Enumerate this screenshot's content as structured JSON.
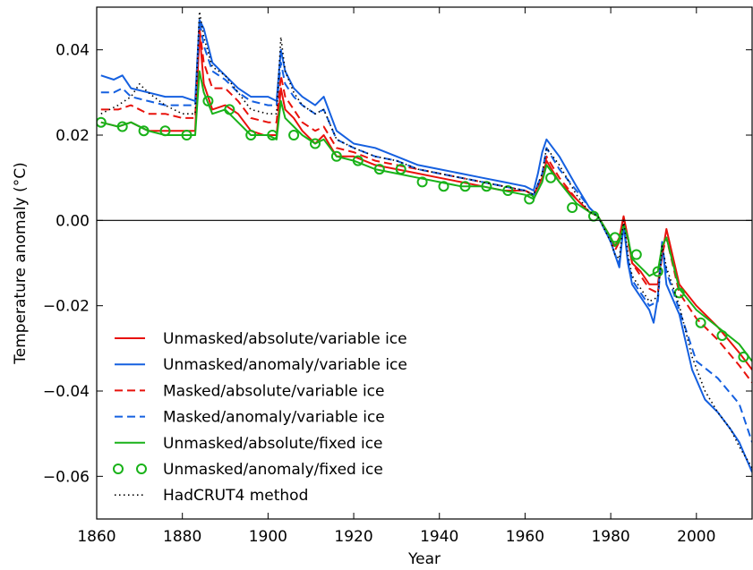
{
  "chart_data": {
    "type": "line",
    "title": "",
    "xlabel": "Year",
    "ylabel": "Temperature anomaly (°C)",
    "xlim": [
      1860,
      2013
    ],
    "ylim": [
      -0.07,
      0.05
    ],
    "xticks": [
      1860,
      1880,
      1900,
      1920,
      1940,
      1960,
      1980,
      2000
    ],
    "xtick_labels": [
      "1860",
      "1880",
      "1900",
      "1920",
      "1940",
      "1960",
      "1980",
      "2000"
    ],
    "yticks": [
      0.04,
      0.02,
      0.0,
      -0.02,
      -0.04,
      -0.06
    ],
    "ytick_labels": [
      "0.04",
      "0.02",
      "0.00",
      "−0.02",
      "−0.04",
      "−0.06"
    ],
    "zero_line": true,
    "grid": false,
    "legend_position": "lower-left",
    "colors": {
      "red": "#e8120c",
      "blue": "#1560e0",
      "green": "#19b219",
      "black": "#000000"
    },
    "series": [
      {
        "name": "Unmasked/absolute/variable ice",
        "color": "#e8120c",
        "style": "solid",
        "x": [
          1861,
          1865,
          1868,
          1872,
          1876,
          1880,
          1883,
          1884,
          1885,
          1887,
          1890,
          1893,
          1896,
          1899,
          1902,
          1903,
          1904,
          1906,
          1908,
          1911,
          1913,
          1916,
          1920,
          1925,
          1930,
          1935,
          1940,
          1945,
          1950,
          1955,
          1960,
          1962,
          1964,
          1965,
          1968,
          1972,
          1975,
          1977,
          1980,
          1981,
          1982,
          1983,
          1984,
          1985,
          1987,
          1989,
          1991,
          1992,
          1993,
          1996,
          2000,
          2005,
          2010,
          2013
        ],
        "y": [
          0.023,
          0.022,
          0.023,
          0.021,
          0.021,
          0.021,
          0.021,
          0.044,
          0.032,
          0.026,
          0.027,
          0.025,
          0.021,
          0.02,
          0.02,
          0.031,
          0.026,
          0.024,
          0.021,
          0.018,
          0.02,
          0.015,
          0.015,
          0.013,
          0.012,
          0.011,
          0.01,
          0.009,
          0.008,
          0.007,
          0.007,
          0.006,
          0.01,
          0.014,
          0.009,
          0.005,
          0.002,
          0.001,
          -0.004,
          -0.006,
          -0.004,
          0.001,
          -0.004,
          -0.01,
          -0.012,
          -0.015,
          -0.015,
          -0.008,
          -0.002,
          -0.015,
          -0.02,
          -0.025,
          -0.031,
          -0.035
        ]
      },
      {
        "name": "Unmasked/anomaly/variable ice",
        "color": "#1560e0",
        "style": "solid",
        "x": [
          1861,
          1864,
          1866,
          1868,
          1872,
          1876,
          1880,
          1883,
          1884,
          1885,
          1887,
          1890,
          1893,
          1896,
          1900,
          1902,
          1903,
          1904,
          1906,
          1908,
          1911,
          1913,
          1916,
          1920,
          1925,
          1930,
          1935,
          1940,
          1945,
          1950,
          1955,
          1960,
          1962,
          1963,
          1964,
          1965,
          1968,
          1972,
          1975,
          1977,
          1980,
          1981,
          1982,
          1983,
          1984,
          1985,
          1987,
          1989,
          1990,
          1991,
          1992,
          1993,
          1996,
          1999,
          2002,
          2005,
          2008,
          2010,
          2013
        ],
        "y": [
          0.034,
          0.033,
          0.034,
          0.031,
          0.03,
          0.029,
          0.029,
          0.028,
          0.047,
          0.045,
          0.037,
          0.034,
          0.031,
          0.029,
          0.029,
          0.028,
          0.04,
          0.035,
          0.031,
          0.029,
          0.027,
          0.029,
          0.021,
          0.018,
          0.017,
          0.015,
          0.013,
          0.012,
          0.011,
          0.01,
          0.009,
          0.008,
          0.007,
          0.011,
          0.016,
          0.019,
          0.015,
          0.008,
          0.003,
          0.001,
          -0.005,
          -0.008,
          -0.011,
          -0.001,
          -0.01,
          -0.015,
          -0.018,
          -0.021,
          -0.024,
          -0.018,
          -0.005,
          -0.015,
          -0.022,
          -0.035,
          -0.042,
          -0.045,
          -0.049,
          -0.052,
          -0.059
        ]
      },
      {
        "name": "Masked/absolute/variable ice",
        "color": "#e8120c",
        "style": "dashed",
        "x": [
          1861,
          1865,
          1868,
          1872,
          1876,
          1880,
          1883,
          1884,
          1885,
          1887,
          1890,
          1893,
          1896,
          1900,
          1902,
          1903,
          1904,
          1906,
          1908,
          1911,
          1913,
          1916,
          1920,
          1925,
          1930,
          1935,
          1940,
          1945,
          1950,
          1955,
          1960,
          1962,
          1964,
          1965,
          1968,
          1972,
          1975,
          1977,
          1980,
          1981,
          1982,
          1983,
          1984,
          1985,
          1987,
          1989,
          1991,
          1992,
          1993,
          1996,
          2000,
          2005,
          2010,
          2013
        ],
        "y": [
          0.026,
          0.026,
          0.027,
          0.025,
          0.025,
          0.024,
          0.024,
          0.045,
          0.037,
          0.031,
          0.031,
          0.028,
          0.024,
          0.023,
          0.023,
          0.034,
          0.029,
          0.026,
          0.023,
          0.021,
          0.022,
          0.017,
          0.016,
          0.014,
          0.013,
          0.012,
          0.011,
          0.01,
          0.009,
          0.008,
          0.007,
          0.006,
          0.01,
          0.015,
          0.01,
          0.005,
          0.002,
          0.001,
          -0.004,
          -0.007,
          -0.005,
          0.001,
          -0.005,
          -0.01,
          -0.013,
          -0.016,
          -0.017,
          -0.008,
          -0.004,
          -0.017,
          -0.023,
          -0.028,
          -0.034,
          -0.038
        ]
      },
      {
        "name": "Masked/anomaly/variable ice",
        "color": "#1560e0",
        "style": "dashed",
        "x": [
          1861,
          1864,
          1866,
          1868,
          1872,
          1876,
          1880,
          1883,
          1884,
          1885,
          1887,
          1890,
          1893,
          1896,
          1900,
          1902,
          1903,
          1904,
          1906,
          1908,
          1911,
          1913,
          1916,
          1920,
          1925,
          1930,
          1935,
          1940,
          1945,
          1950,
          1955,
          1960,
          1962,
          1964,
          1965,
          1968,
          1972,
          1975,
          1977,
          1980,
          1981,
          1982,
          1983,
          1984,
          1985,
          1987,
          1989,
          1991,
          1992,
          1993,
          1996,
          2000,
          2005,
          2010,
          2013
        ],
        "y": [
          0.03,
          0.03,
          0.031,
          0.029,
          0.028,
          0.027,
          0.027,
          0.027,
          0.047,
          0.041,
          0.035,
          0.033,
          0.03,
          0.028,
          0.027,
          0.027,
          0.037,
          0.032,
          0.029,
          0.027,
          0.025,
          0.026,
          0.019,
          0.017,
          0.015,
          0.014,
          0.012,
          0.011,
          0.01,
          0.009,
          0.008,
          0.007,
          0.006,
          0.011,
          0.017,
          0.012,
          0.007,
          0.003,
          0.001,
          -0.005,
          -0.008,
          -0.01,
          -0.001,
          -0.009,
          -0.014,
          -0.017,
          -0.02,
          -0.019,
          -0.006,
          -0.012,
          -0.021,
          -0.033,
          -0.037,
          -0.043,
          -0.052
        ]
      },
      {
        "name": "Unmasked/absolute/fixed ice",
        "color": "#19b219",
        "style": "solid",
        "x": [
          1861,
          1865,
          1868,
          1872,
          1876,
          1880,
          1883,
          1884,
          1885,
          1887,
          1890,
          1893,
          1896,
          1900,
          1902,
          1903,
          1904,
          1906,
          1908,
          1911,
          1913,
          1916,
          1920,
          1925,
          1930,
          1935,
          1940,
          1945,
          1950,
          1955,
          1960,
          1962,
          1964,
          1965,
          1968,
          1972,
          1975,
          1977,
          1980,
          1981,
          1982,
          1983,
          1984,
          1985,
          1987,
          1989,
          1991,
          1992,
          1993,
          1996,
          2000,
          2005,
          2010,
          2013
        ],
        "y": [
          0.023,
          0.022,
          0.023,
          0.021,
          0.02,
          0.02,
          0.02,
          0.035,
          0.03,
          0.025,
          0.026,
          0.023,
          0.02,
          0.02,
          0.019,
          0.028,
          0.024,
          0.022,
          0.02,
          0.018,
          0.019,
          0.015,
          0.014,
          0.012,
          0.011,
          0.01,
          0.009,
          0.008,
          0.008,
          0.007,
          0.006,
          0.005,
          0.009,
          0.013,
          0.009,
          0.004,
          0.002,
          0.001,
          -0.004,
          -0.006,
          -0.005,
          -0.001,
          -0.004,
          -0.009,
          -0.011,
          -0.013,
          -0.012,
          -0.006,
          -0.004,
          -0.016,
          -0.021,
          -0.025,
          -0.029,
          -0.033
        ]
      },
      {
        "name": "Unmasked/anomaly/fixed ice",
        "color": "#19b219",
        "style": "circles",
        "x": [
          1861,
          1866,
          1871,
          1876,
          1881,
          1886,
          1891,
          1896,
          1901,
          1906,
          1911,
          1916,
          1921,
          1926,
          1931,
          1936,
          1941,
          1946,
          1951,
          1956,
          1961,
          1966,
          1971,
          1976,
          1981,
          1986,
          1991,
          1996,
          2001,
          2006,
          2011
        ],
        "y": [
          0.023,
          0.022,
          0.021,
          0.021,
          0.02,
          0.028,
          0.026,
          0.02,
          0.02,
          0.02,
          0.018,
          0.015,
          0.014,
          0.012,
          0.012,
          0.009,
          0.008,
          0.008,
          0.008,
          0.007,
          0.005,
          0.01,
          0.003,
          0.001,
          -0.004,
          -0.008,
          -0.012,
          -0.017,
          -0.024,
          -0.027,
          -0.032
        ]
      },
      {
        "name": "HadCRUT4 method",
        "color": "#000000",
        "style": "dotted",
        "x": [
          1861,
          1865,
          1868,
          1870,
          1872,
          1876,
          1880,
          1883,
          1884,
          1885,
          1887,
          1890,
          1893,
          1896,
          1900,
          1902,
          1903,
          1904,
          1906,
          1908,
          1911,
          1913,
          1916,
          1920,
          1925,
          1930,
          1935,
          1940,
          1945,
          1950,
          1955,
          1960,
          1962,
          1964,
          1965,
          1968,
          1972,
          1975,
          1977,
          1980,
          1981,
          1982,
          1983,
          1984,
          1985,
          1987,
          1989,
          1991,
          1992,
          1993,
          1996,
          1999,
          2002,
          2005,
          2008,
          2010,
          2013
        ],
        "y": [
          0.025,
          0.027,
          0.029,
          0.032,
          0.03,
          0.027,
          0.025,
          0.025,
          0.049,
          0.043,
          0.036,
          0.034,
          0.03,
          0.026,
          0.025,
          0.025,
          0.043,
          0.035,
          0.03,
          0.027,
          0.025,
          0.026,
          0.019,
          0.017,
          0.015,
          0.014,
          0.012,
          0.011,
          0.01,
          0.009,
          0.008,
          0.007,
          0.006,
          0.011,
          0.017,
          0.013,
          0.006,
          0.002,
          0.001,
          -0.005,
          -0.008,
          -0.009,
          0.0,
          -0.008,
          -0.013,
          -0.016,
          -0.019,
          -0.018,
          -0.006,
          -0.011,
          -0.02,
          -0.032,
          -0.04,
          -0.045,
          -0.049,
          -0.053,
          -0.058
        ]
      }
    ]
  }
}
